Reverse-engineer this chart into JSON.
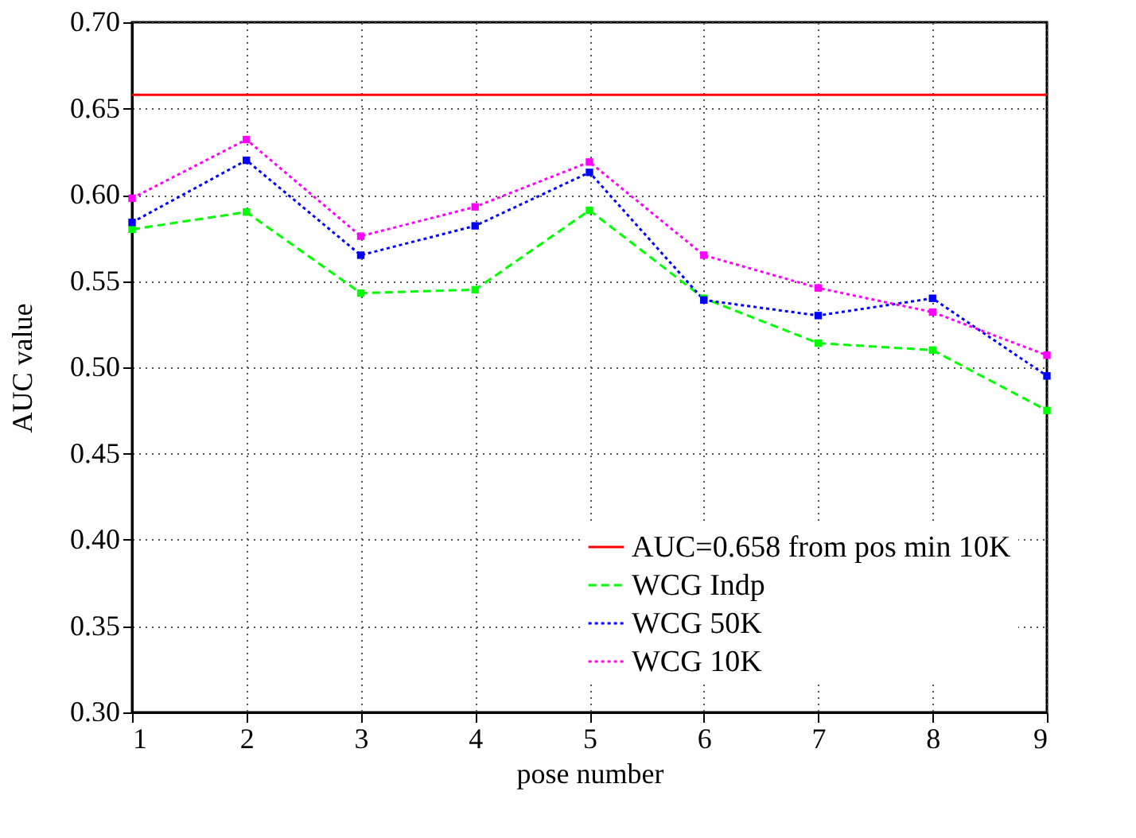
{
  "chart_data": {
    "type": "line",
    "xlabel": "pose number",
    "ylabel": "AUC value",
    "x": [
      1,
      2,
      3,
      4,
      5,
      6,
      7,
      8,
      9
    ],
    "xlim": [
      1,
      9
    ],
    "xticks": [
      1,
      2,
      3,
      4,
      5,
      6,
      7,
      8,
      9
    ],
    "ylim": [
      0.3,
      0.7
    ],
    "yticks": [
      {
        "value": 0.3,
        "label": "0.30"
      },
      {
        "value": 0.35,
        "label": "0.35"
      },
      {
        "value": 0.4,
        "label": "0.40"
      },
      {
        "value": 0.45,
        "label": "0.45"
      },
      {
        "value": 0.5,
        "label": "0.50"
      },
      {
        "value": 0.55,
        "label": "0.55"
      },
      {
        "value": 0.6,
        "label": "0.60"
      },
      {
        "value": 0.65,
        "label": "0.65"
      },
      {
        "value": 0.7,
        "label": "0.70"
      }
    ],
    "grid": true,
    "legend": "bottom right",
    "series": [
      {
        "name": "AUC=0.658 from pos min 10K",
        "color": "#ff0000",
        "x": [
          1,
          9
        ],
        "values": [
          0.658,
          0.658
        ],
        "line_style": "solid",
        "marker": "none"
      },
      {
        "name": "WCG Indp",
        "color": "#00ff00",
        "values": [
          0.58,
          0.59,
          0.543,
          0.545,
          0.591,
          0.54,
          0.514,
          0.51,
          0.475
        ],
        "line_style": "dashed",
        "marker": "square"
      },
      {
        "name": "WCG 50K",
        "color": "#0000ff",
        "values": [
          0.584,
          0.62,
          0.565,
          0.582,
          0.613,
          0.539,
          0.53,
          0.54,
          0.495
        ],
        "line_style": "dotted",
        "marker": "square"
      },
      {
        "name": "WCG 10K",
        "color": "#ff00ff",
        "values": [
          0.598,
          0.632,
          0.576,
          0.593,
          0.619,
          0.565,
          0.546,
          0.532,
          0.507
        ],
        "line_style": "dotted",
        "marker": "square"
      }
    ]
  }
}
